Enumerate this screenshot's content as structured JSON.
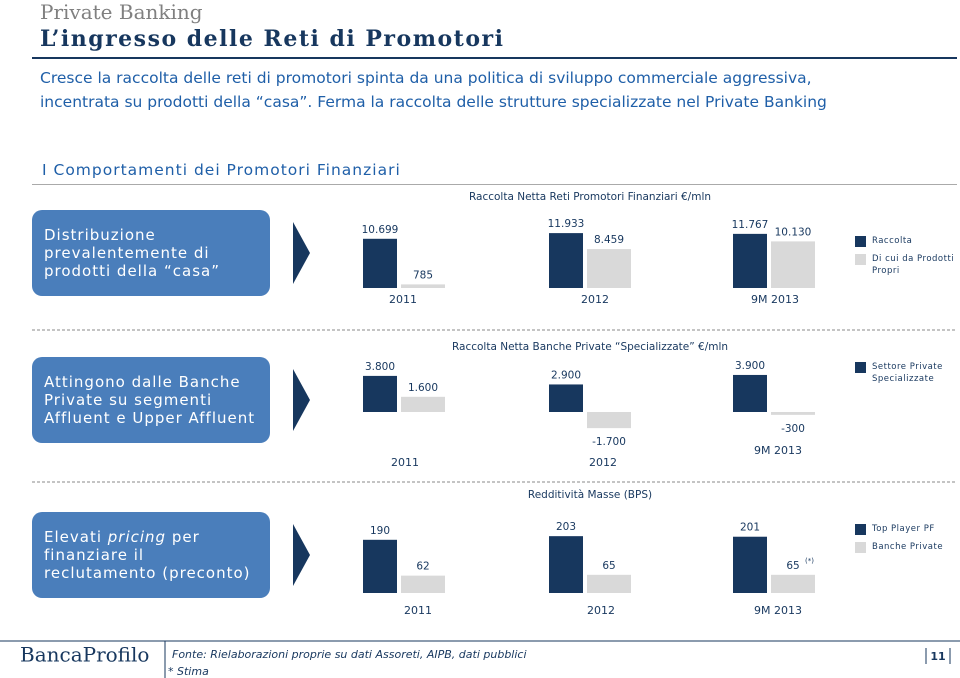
{
  "header": {
    "section": "Private Banking",
    "title": "L’ingresso delle Reti di Promotori",
    "intro": "Cresce la raccolta delle reti di promotori spinta da una politica di sviluppo commerciale aggressiva, incentrata su prodotti della “casa”. Ferma la raccolta delle strutture specializzate nel Private Banking",
    "subtitle": "I Comportamenti dei Promotori Finanziari"
  },
  "boxes": [
    {
      "text": "Distribuzione prevalentemente di prodotti della “casa”"
    },
    {
      "text": "Attingono dalle Banche Private su segmenti Affluent e Upper Affluent"
    },
    {
      "parts": [
        "Elevati ",
        "pricing",
        " per finanziare il reclutamento (preconto)"
      ]
    }
  ],
  "chart_data": [
    {
      "type": "bar",
      "title": "Raccolta Netta Reti Promotori Finanziari €/mln",
      "categories": [
        "2011",
        "2012",
        "9M 2013"
      ],
      "series": [
        {
          "name": "Raccolta",
          "color": "#17375e",
          "values": [
            10699,
            11933,
            11767
          ],
          "value_labels": [
            "10.699",
            "11.933",
            "11.767"
          ]
        },
        {
          "name": "Di cui da Prodotti Propri",
          "color": "#d9d9d9",
          "values": [
            785,
            8459,
            10130
          ],
          "value_labels": [
            "785",
            "8.459",
            "10.130"
          ]
        }
      ]
    },
    {
      "type": "bar",
      "title": "Raccolta Netta Banche Private “Specializzate” €/mln",
      "categories": [
        "2011",
        "2012",
        "9M 2013"
      ],
      "series": [
        {
          "name": "Settore Private Specializzate",
          "color": "#17375e",
          "values": [
            3800,
            2900,
            3900
          ],
          "value_labels": [
            "3.800",
            "2.900",
            "3.900"
          ]
        },
        {
          "color": "#d9d9d9",
          "values": [
            1600,
            -1700,
            -300
          ],
          "value_labels": [
            "1.600",
            "-1.700",
            "-300"
          ]
        }
      ]
    },
    {
      "type": "bar",
      "title": "Redditività Masse (BPS)",
      "categories": [
        "2011",
        "2012",
        "9M 2013"
      ],
      "note_marker": "(*)",
      "series": [
        {
          "name": "Top Player PF",
          "color": "#17375e",
          "values": [
            190,
            203,
            201
          ]
        },
        {
          "name": "Banche Private",
          "color": "#d9d9d9",
          "values": [
            62,
            65,
            65
          ]
        }
      ]
    }
  ],
  "footer": {
    "logo": "BancaProfilo",
    "source": "Fonte: Rielaborazioni proprie su dati Assoreti, AIPB, dati pubblici",
    "note": "* Stima",
    "page": "11"
  }
}
